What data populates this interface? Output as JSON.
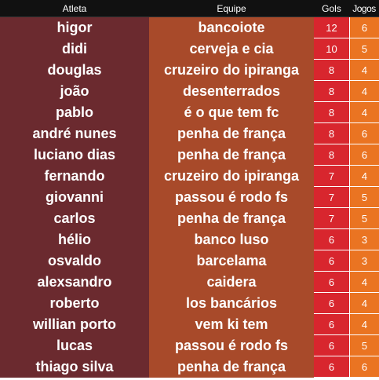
{
  "header": {
    "atleta": "Atleta",
    "equipe": "Equipe",
    "gols": "Gols",
    "jogos": "Jogos"
  },
  "rows": [
    {
      "atleta": "higor",
      "equipe": "bancoiote",
      "gols": "12",
      "jogos": "6"
    },
    {
      "atleta": "didi",
      "equipe": "cerveja e cia",
      "gols": "10",
      "jogos": "5"
    },
    {
      "atleta": "douglas",
      "equipe": "cruzeiro do ipiranga",
      "gols": "8",
      "jogos": "4"
    },
    {
      "atleta": "joão",
      "equipe": "desenterrados",
      "gols": "8",
      "jogos": "4"
    },
    {
      "atleta": "pablo",
      "equipe": "é o que tem fc",
      "gols": "8",
      "jogos": "4"
    },
    {
      "atleta": "andré nunes",
      "equipe": "penha de frança",
      "gols": "8",
      "jogos": "6"
    },
    {
      "atleta": "luciano dias",
      "equipe": "penha de frança",
      "gols": "8",
      "jogos": "6"
    },
    {
      "atleta": "fernando",
      "equipe": "cruzeiro do ipiranga",
      "gols": "7",
      "jogos": "4"
    },
    {
      "atleta": "giovanni",
      "equipe": "passou é rodo fs",
      "gols": "7",
      "jogos": "5"
    },
    {
      "atleta": "carlos",
      "equipe": "penha de frança",
      "gols": "7",
      "jogos": "5"
    },
    {
      "atleta": "hélio",
      "equipe": "banco luso",
      "gols": "6",
      "jogos": "3"
    },
    {
      "atleta": "osvaldo",
      "equipe": "barcelama",
      "gols": "6",
      "jogos": "3"
    },
    {
      "atleta": "alexsandro",
      "equipe": "caidera",
      "gols": "6",
      "jogos": "4"
    },
    {
      "atleta": "roberto",
      "equipe": "los bancários",
      "gols": "6",
      "jogos": "4"
    },
    {
      "atleta": "willian porto",
      "equipe": "vem ki tem",
      "gols": "6",
      "jogos": "4"
    },
    {
      "atleta": "lucas",
      "equipe": "passou é rodo fs",
      "gols": "6",
      "jogos": "5"
    },
    {
      "atleta": "thiago silva",
      "equipe": "penha de frança",
      "gols": "6",
      "jogos": "6"
    }
  ],
  "colors": {
    "header_bg": "#111111",
    "atleta_bg": "#6b2a2f",
    "equipe_bg": "#a84a2a",
    "gols_bg": "#d8262e",
    "jogos_bg": "#ea7422"
  }
}
